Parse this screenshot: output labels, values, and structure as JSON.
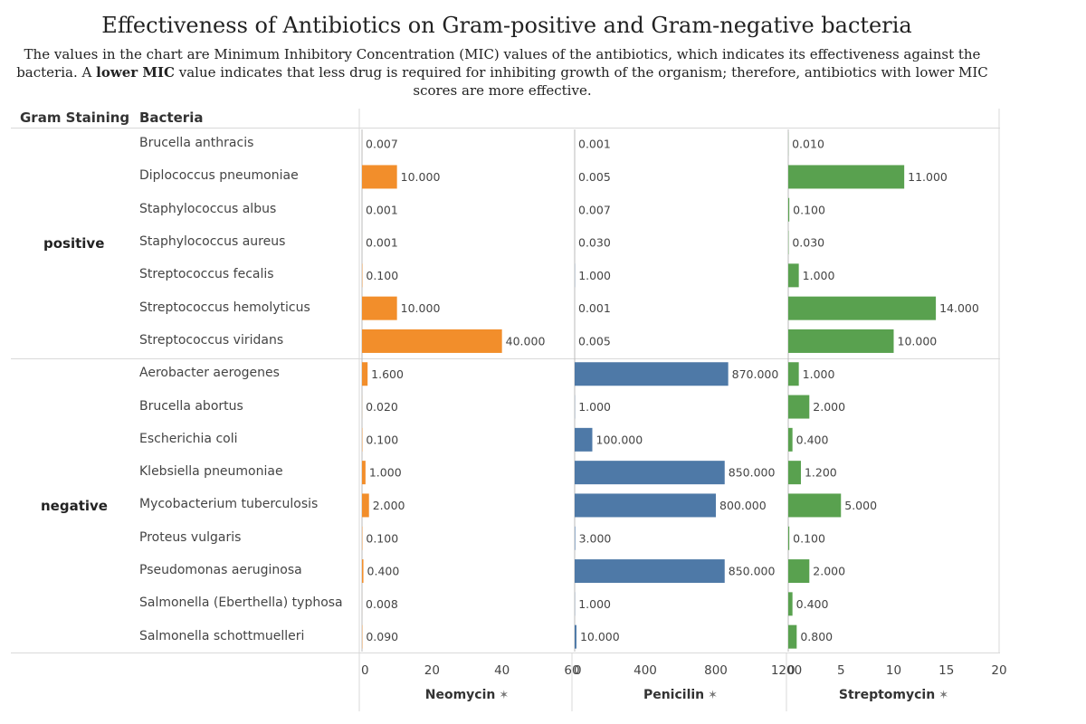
{
  "title": "Effectiveness of Antibiotics on Gram-positive and Gram-negative bacteria",
  "subtitle": {
    "part1": "The values in the chart are Minimum Inhibitory Concentration (MIC) values of the antibiotics, which indicates its effectiveness against the bacteria. A",
    "bold": "lower MIC",
    "part2": " value indicates that less drug is required for inhibiting growth of the organism; therefore, antibiotics with lower MIC scores are more effective."
  },
  "headers": {
    "gram": "Gram Staining",
    "bacteria": "Bacteria"
  },
  "groups": [
    {
      "label": "positive",
      "count": 7
    },
    {
      "label": "negative",
      "count": 9
    }
  ],
  "pin_icon": "pin-icon",
  "chart_data": {
    "type": "bar",
    "categories": [
      "Brucella anthracis",
      "Diplococcus pneumoniae",
      "Staphylococcus albus",
      "Staphylococcus aureus",
      "Streptococcus fecalis",
      "Streptococcus hemolyticus",
      "Streptococcus viridans",
      "Aerobacter aerogenes",
      "Brucella abortus",
      "Escherichia coli",
      "Klebsiella pneumoniae",
      "Mycobacterium tuberculosis",
      "Proteus vulgaris",
      "Pseudomonas aeruginosa",
      "Salmonella (Eberthella) typhosa",
      "Salmonella schottmuelleri"
    ],
    "series": [
      {
        "name": "Neomycin",
        "color": "#f28e2b",
        "ticks": [
          0,
          20,
          40,
          60
        ],
        "xlim": [
          0,
          60
        ],
        "values": [
          0.007,
          10,
          0.001,
          0.001,
          0.1,
          10,
          40,
          1.6,
          0.02,
          0.1,
          1,
          2,
          0.1,
          0.4,
          0.008,
          0.09
        ],
        "labels": [
          "0.007",
          "10.000",
          "0.001",
          "0.001",
          "0.100",
          "10.000",
          "40.000",
          "1.600",
          "0.020",
          "0.100",
          "1.000",
          "2.000",
          "0.100",
          "0.400",
          "0.008",
          "0.090"
        ]
      },
      {
        "name": "Penicilin",
        "color": "#4e79a7",
        "ticks": [
          0,
          400,
          800,
          1200
        ],
        "xlim": [
          0,
          1200
        ],
        "values": [
          0.001,
          0.005,
          0.007,
          0.03,
          1,
          0.001,
          0.005,
          870,
          1,
          100,
          850,
          800,
          3,
          850,
          1,
          10
        ],
        "labels": [
          "0.001",
          "0.005",
          "0.007",
          "0.030",
          "1.000",
          "0.001",
          "0.005",
          "870.000",
          "1.000",
          "100.000",
          "850.000",
          "800.000",
          "3.000",
          "850.000",
          "1.000",
          "10.000"
        ]
      },
      {
        "name": "Streptomycin",
        "color": "#59a14f",
        "ticks": [
          0,
          5,
          10,
          15,
          20
        ],
        "xlim": [
          0,
          20
        ],
        "values": [
          0.01,
          11,
          0.1,
          0.03,
          1,
          14,
          10,
          1,
          2,
          0.4,
          1.2,
          5,
          0.1,
          2,
          0.4,
          0.8
        ],
        "labels": [
          "0.010",
          "11.000",
          "0.100",
          "0.030",
          "1.000",
          "14.000",
          "10.000",
          "1.000",
          "2.000",
          "0.400",
          "1.200",
          "5.000",
          "0.100",
          "2.000",
          "0.400",
          "0.800"
        ]
      }
    ]
  }
}
